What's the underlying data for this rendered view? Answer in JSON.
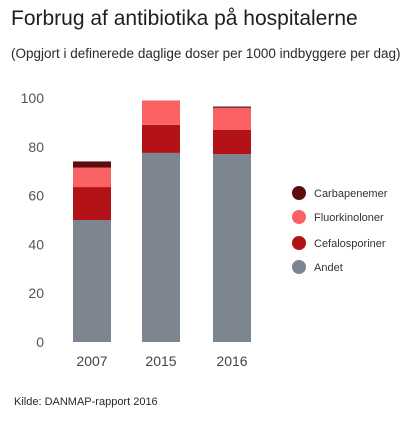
{
  "title": "Forbrug af antibiotika på hospitalerne",
  "subtitle": "(Opgjort i definerede daglige doser per 1000 indbyggere per dag)",
  "source": "Kilde: DANMAP-rapport 2016",
  "chart_data": {
    "type": "bar",
    "stacked": true,
    "categories": [
      "2007",
      "2015",
      "2016"
    ],
    "ylim": [
      0,
      100
    ],
    "yticks": [
      0,
      20,
      40,
      60,
      80,
      100
    ],
    "grid": false,
    "legend_position": "right",
    "series": [
      {
        "name": "Andet",
        "color": "#7d8591",
        "values": [
          50,
          77.5,
          77
        ]
      },
      {
        "name": "Cefalosporiner",
        "color": "#b31217",
        "values": [
          13.5,
          11.5,
          10
        ]
      },
      {
        "name": "Fluorkinoloner",
        "color": "#f96163",
        "values": [
          8,
          10,
          9
        ]
      },
      {
        "name": "Carbapenemer",
        "color": "#5c0b0f",
        "values": [
          2.5,
          0,
          0.5
        ]
      }
    ]
  }
}
